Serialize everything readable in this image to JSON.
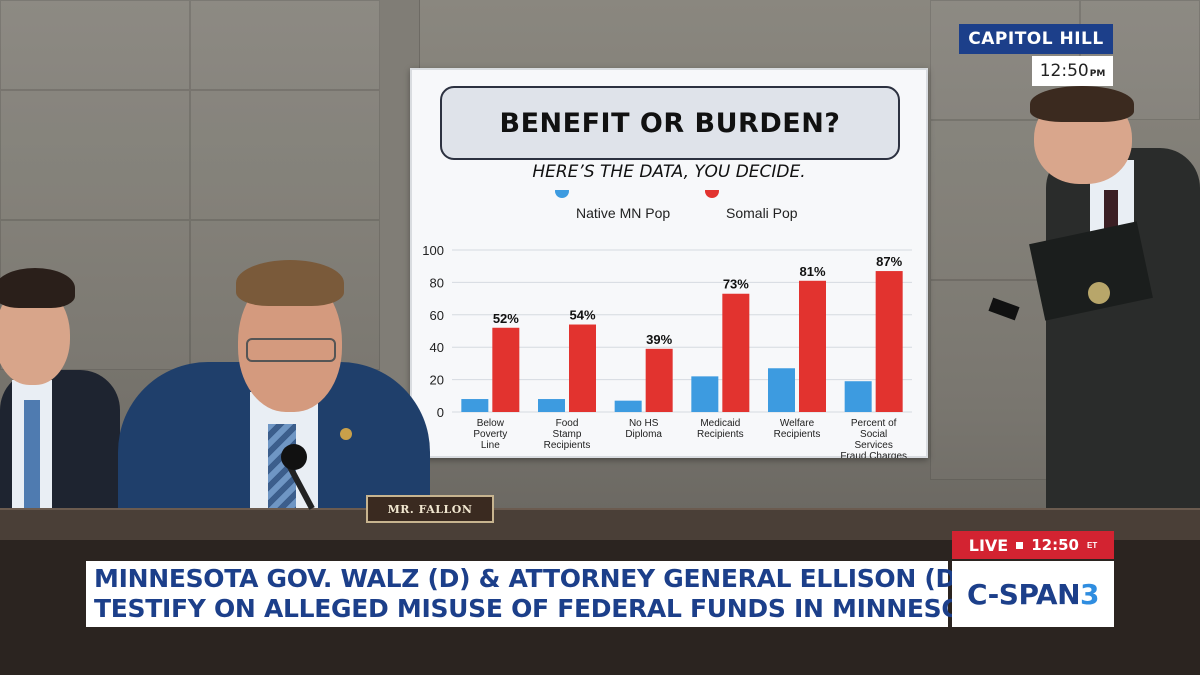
{
  "overlay": {
    "network_label": "CAPITOL HILL",
    "clock": "12:50",
    "clock_suffix": "PM",
    "live_label": "LIVE",
    "live_time": "12:50",
    "live_tz": "ET",
    "brand_prefix": "C-SPAN",
    "brand_number": "3",
    "chyron_line1": "MINNESOTA GOV. WALZ (D) & ATTORNEY GENERAL ELLISON (D)",
    "chyron_line2": "TESTIFY ON ALLEGED MISUSE OF FEDERAL FUNDS IN MINNESOTA"
  },
  "nameplate": "MR. FALLON",
  "colors": {
    "native_bar": "#3d9be0",
    "somali_bar": "#e2332f",
    "network_blue": "#1c3f8a",
    "live_red": "#d32331"
  },
  "chart_data": {
    "type": "bar",
    "title": "BENEFIT OR BURDEN?",
    "subtitle": "HERE’S THE DATA, YOU DECIDE.",
    "categories": [
      [
        "Below",
        "Poverty",
        "Line"
      ],
      [
        "Food",
        "Stamp",
        "Recipients"
      ],
      [
        "No HS",
        "Diploma"
      ],
      [
        "Medicaid",
        "Recipients"
      ],
      [
        "Welfare",
        "Recipients"
      ],
      [
        "Percent of",
        "Social",
        "Services",
        "Fraud Charges"
      ]
    ],
    "series": [
      {
        "name": "Native MN Pop",
        "values": [
          8,
          8,
          7,
          22,
          27,
          19
        ]
      },
      {
        "name": "Somali Pop",
        "values": [
          52,
          54,
          39,
          73,
          81,
          87
        ]
      }
    ],
    "data_labels": [
      "52%",
      "54%",
      "39%",
      "73%",
      "81%",
      "87%"
    ],
    "yticks": [
      0,
      20,
      40,
      60,
      80,
      100
    ],
    "ylim": [
      0,
      100
    ],
    "legend_position": "top",
    "grid": true
  }
}
